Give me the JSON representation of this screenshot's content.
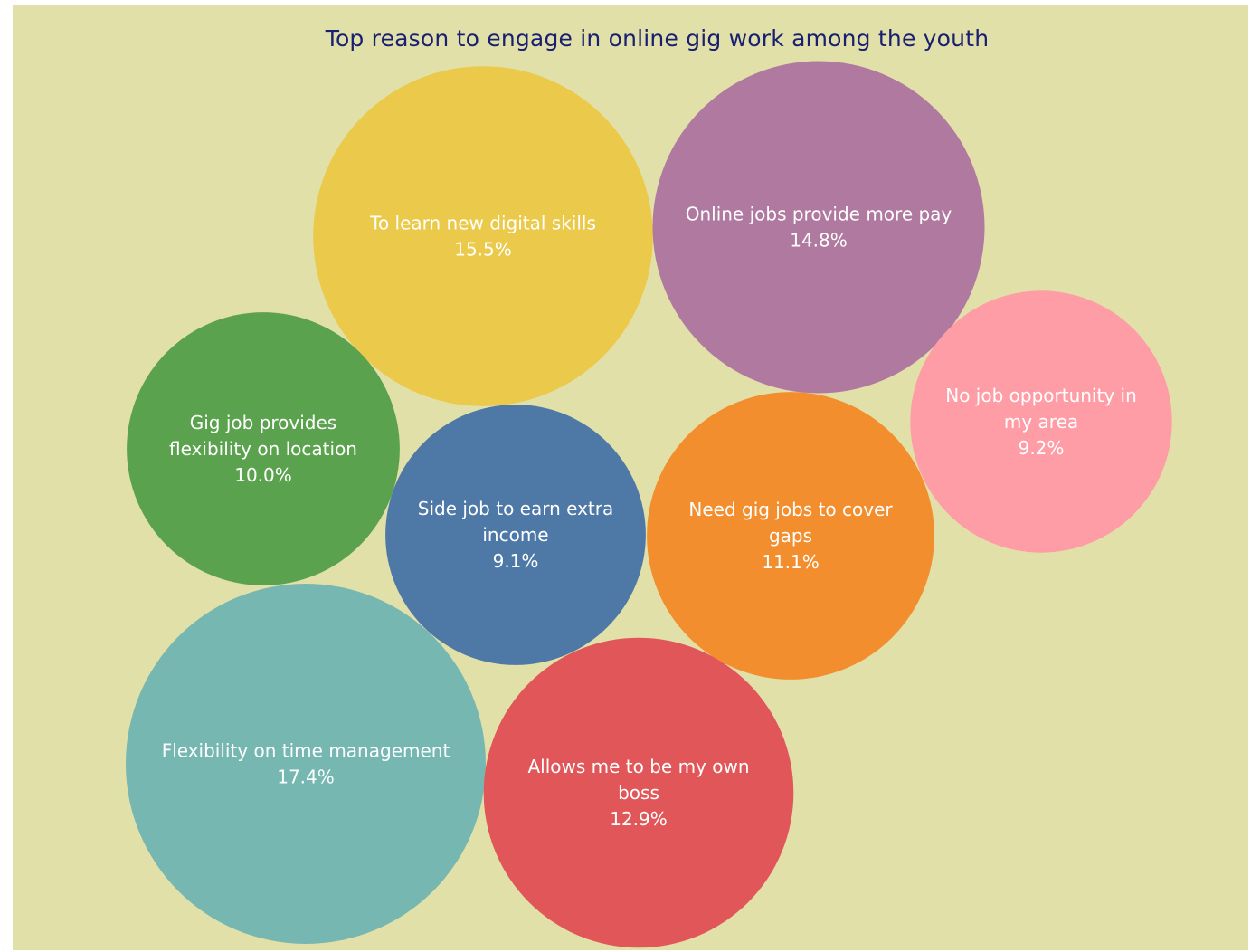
{
  "chart_data": {
    "type": "bubble",
    "title": "Top reason to engage in online gig work among the youth",
    "points": [
      {
        "label_lines": [
          "To learn new digital skills"
        ],
        "value": "15.5%",
        "v": 15.5,
        "color": "#ebc94a"
      },
      {
        "label_lines": [
          "Online jobs provide more pay"
        ],
        "value": "14.8%",
        "v": 14.8,
        "color": "#b07aa0"
      },
      {
        "label_lines": [
          "No job opportunity in",
          "my area"
        ],
        "value": "9.2%",
        "v": 9.2,
        "color": "#fe9da6"
      },
      {
        "label_lines": [
          "Gig job provides",
          "flexibility on location"
        ],
        "value": "10.0%",
        "v": 10.0,
        "color": "#5ba24e"
      },
      {
        "label_lines": [
          "Side job to earn extra",
          "income"
        ],
        "value": "9.1%",
        "v": 9.1,
        "color": "#4e79a6"
      },
      {
        "label_lines": [
          "Need gig jobs to cover",
          "gaps"
        ],
        "value": "11.1%",
        "v": 11.1,
        "color": "#f28e2d"
      },
      {
        "label_lines": [
          "Flexibility on time management"
        ],
        "value": "17.4%",
        "v": 17.4,
        "color": "#76b7b1"
      },
      {
        "label_lines": [
          "Allows me to be my own",
          "boss"
        ],
        "value": "12.9%",
        "v": 12.9,
        "color": "#e15759"
      }
    ]
  }
}
